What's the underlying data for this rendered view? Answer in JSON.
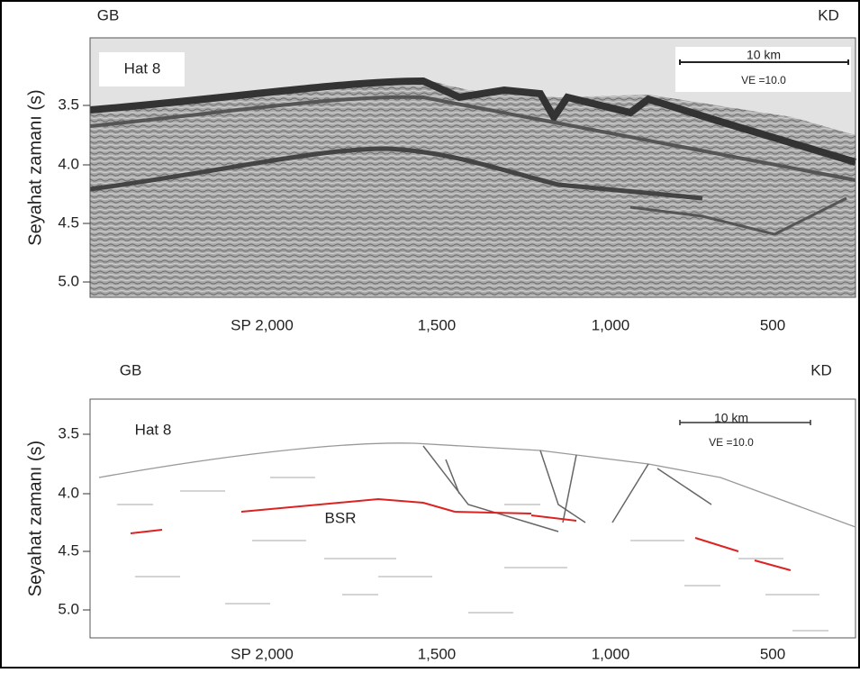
{
  "panels": [
    {
      "left": "GB",
      "right": "KD",
      "label": "Hat 8",
      "scale": "10 km",
      "ve": "VE =10.0",
      "y_axis_label": "Seyahat zamanı (s)",
      "yticks": [
        "3.5",
        "4.0",
        "4.5",
        "5.0"
      ],
      "xticks": [
        "SP 2,000",
        "1,500",
        "1,000",
        "500"
      ]
    },
    {
      "left": "GB",
      "right": "KD",
      "label": "Hat 8",
      "scale": "10 km",
      "ve": "VE =10.0",
      "y_axis_label": "Seyahat zamanı (s)",
      "yticks": [
        "3.5",
        "4.0",
        "4.5",
        "5.0"
      ],
      "xticks": [
        "SP 2,000",
        "1,500",
        "1,000",
        "500"
      ],
      "annotation": "BSR"
    }
  ]
}
